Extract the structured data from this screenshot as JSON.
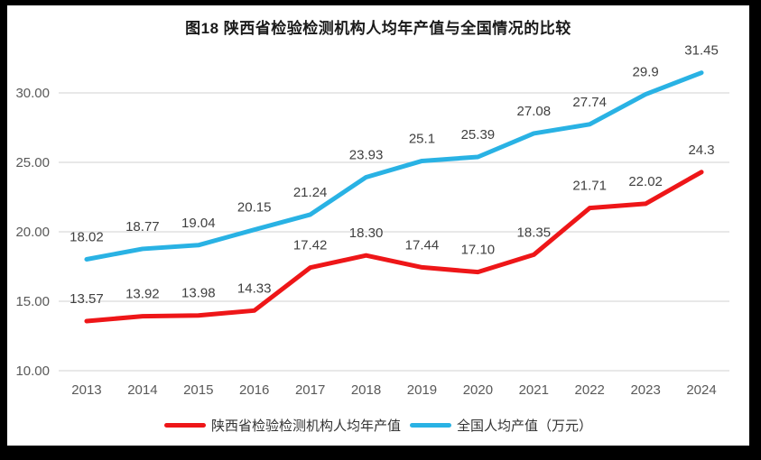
{
  "chart_data": {
    "type": "line",
    "title": "图18 陕西省检验检测机构人均年产值与全国情况的比较",
    "categories": [
      "2013",
      "2014",
      "2015",
      "2016",
      "2017",
      "2018",
      "2019",
      "2020",
      "2021",
      "2022",
      "2023",
      "2024"
    ],
    "series": [
      {
        "name": "陕西省检验检测机构人均年产值",
        "color": "#ee1618",
        "values": [
          13.57,
          13.92,
          13.98,
          14.33,
          17.42,
          18.3,
          17.44,
          17.1,
          18.35,
          21.71,
          22.02,
          24.3
        ],
        "labels": [
          "13.57",
          "13.92",
          "13.98",
          "14.33",
          "17.42",
          "18.30",
          "17.44",
          "17.10",
          "18.35",
          "21.71",
          "22.02",
          "24.3"
        ]
      },
      {
        "name": "全国人均产值（万元）",
        "color": "#29b2e4",
        "values": [
          18.02,
          18.77,
          19.04,
          20.15,
          21.24,
          23.93,
          25.1,
          25.39,
          27.08,
          27.74,
          29.9,
          31.45
        ],
        "labels": [
          "18.02",
          "18.77",
          "19.04",
          "20.15",
          "21.24",
          "23.93",
          "25.1",
          "25.39",
          "27.08",
          "27.74",
          "29.9",
          "31.45"
        ]
      }
    ],
    "ylim": [
      10,
      30
    ],
    "yticks": [
      "10.00",
      "15.00",
      "20.00",
      "25.00",
      "30.00"
    ],
    "xlabel": "",
    "ylabel": "",
    "grid": true,
    "legend_position": "bottom"
  },
  "colors": {
    "grid": "#d9d9d9",
    "tick_text": "#595959",
    "label_text": "#404040",
    "title_text": "#1a1a1a",
    "frame_border": "#000000",
    "background": "#ffffff"
  }
}
